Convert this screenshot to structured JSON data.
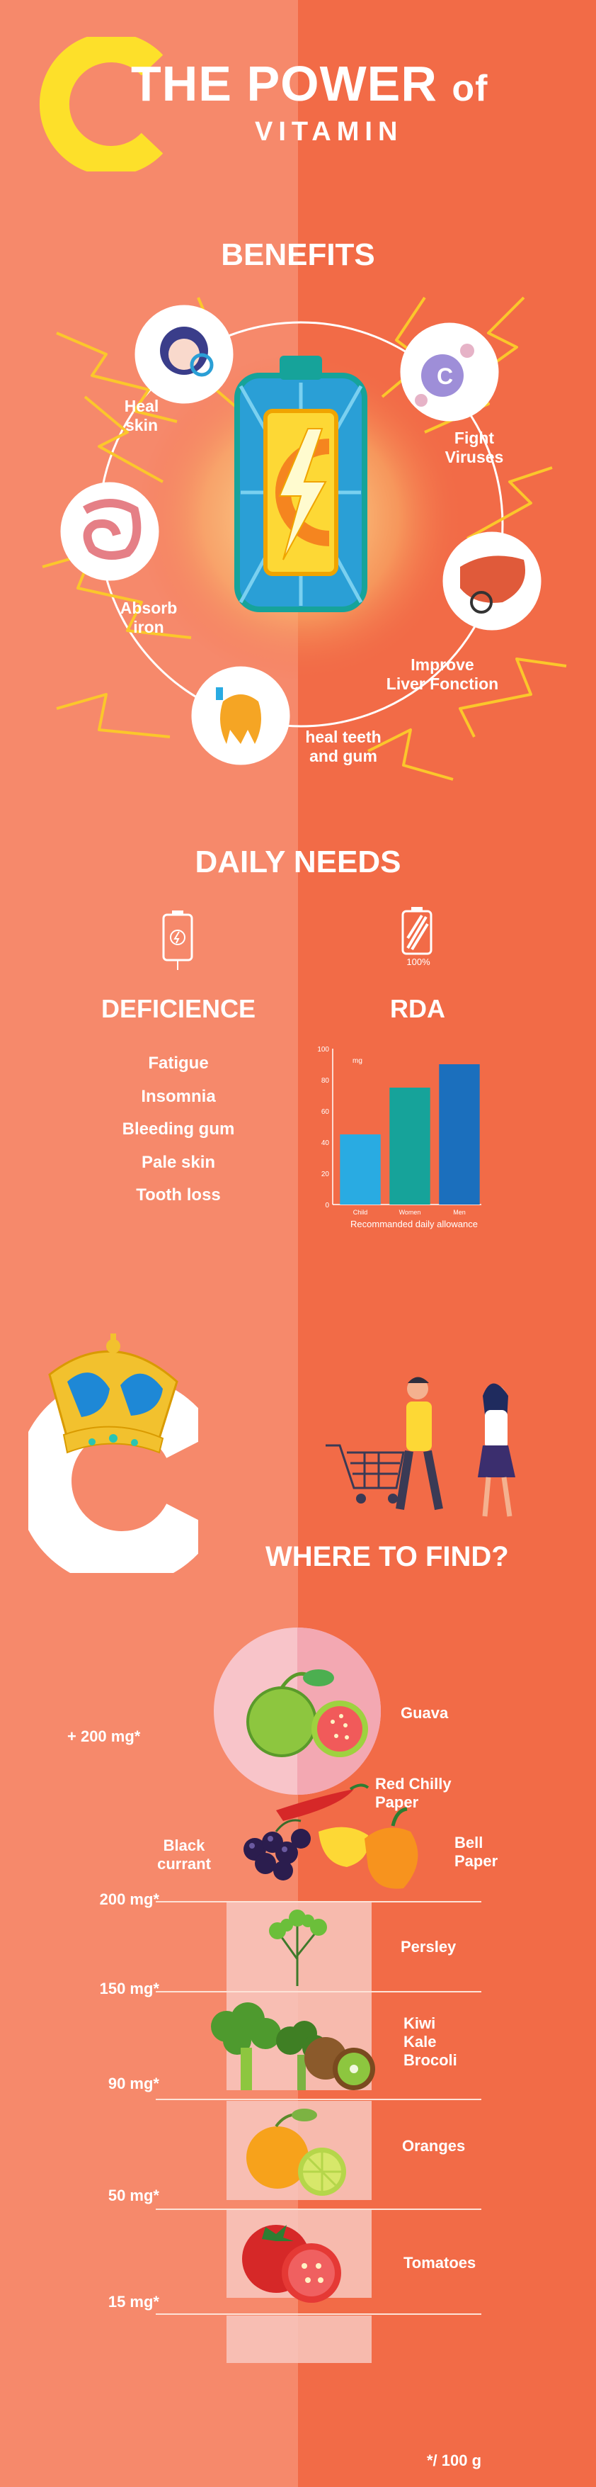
{
  "header": {
    "big_letter": "C",
    "title_line1": "THE POWER",
    "title_of": "of",
    "title_line2": "VITAMIN"
  },
  "benefits": {
    "title": "BENEFITS",
    "items": [
      {
        "label_line1": "Heal",
        "label_line2": "skin"
      },
      {
        "label_line1": "Fight",
        "label_line2": "Viruses"
      },
      {
        "label_line1": "Absorb",
        "label_line2": "iron"
      },
      {
        "label_line1": "Improve",
        "label_line2": "Liver Fonction"
      },
      {
        "label_line1": "heal teeth",
        "label_line2": "and gum"
      }
    ]
  },
  "daily_needs": {
    "title": "DAILY NEEDS",
    "battery_full_label": "100%",
    "deficience": {
      "title": "DEFICIENCE",
      "items": [
        "Fatigue",
        "Insomnia",
        "Bleeding gum",
        "Pale skin",
        "Tooth loss"
      ]
    },
    "rda": {
      "title": "RDA"
    }
  },
  "chart_data": {
    "type": "bar",
    "categories": [
      "Child",
      "Women",
      "Men"
    ],
    "values": [
      45,
      75,
      90
    ],
    "colors": [
      "#29abe2",
      "#16a39a",
      "#1b6fbd"
    ],
    "title": "",
    "unit": "mg",
    "xlabel": "Recommanded daily allowance",
    "ylabel": "",
    "ylim": [
      0,
      100
    ],
    "yticks": [
      0,
      20,
      40,
      60,
      80,
      100
    ],
    "grid": false
  },
  "where": {
    "big_letter": "C",
    "title": "WHERE TO FIND?",
    "top_amount": "+ 200 mg*",
    "sources": {
      "guava": "Guava",
      "red_chilly_line1": "Red Chilly",
      "red_chilly_line2": "Paper",
      "bell_line1": "Bell",
      "bell_line2": "Paper",
      "black_line1": "Black",
      "black_line2": "currant",
      "persley": "Persley",
      "kiwi": "Kiwi",
      "kale": "Kale",
      "brocoli": "Brocoli",
      "oranges": "Oranges",
      "tomatoes": "Tomatoes"
    },
    "levels": [
      "200 mg*",
      "150 mg*",
      "90 mg*",
      "50 mg*",
      "15 mg*"
    ],
    "footnote": "*/ 100 g"
  }
}
